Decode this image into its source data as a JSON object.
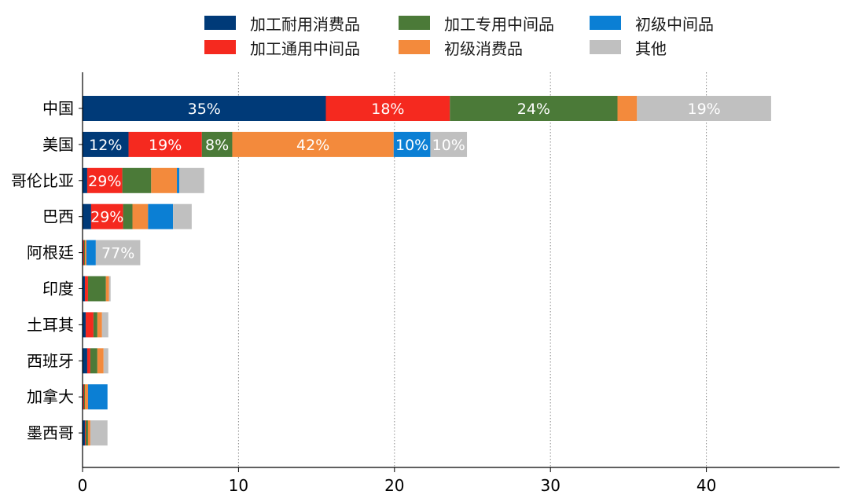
{
  "chart_data": {
    "type": "bar",
    "orientation": "horizontal",
    "stacked": true,
    "title": "",
    "xlabel": "",
    "ylabel": "",
    "xlim": [
      0,
      48
    ],
    "xticks": [
      0,
      10,
      20,
      30,
      40
    ],
    "grid": "vertical dotted",
    "legend_position": "top",
    "categories": [
      "中国",
      "美国",
      "哥伦比亚",
      "巴西",
      "阿根廷",
      "印度",
      "土耳其",
      "西班牙",
      "加拿大",
      "墨西哥"
    ],
    "series": [
      {
        "name": "加工耐用消费品",
        "color": "#003a78",
        "values": [
          15.6,
          2.95,
          0.3,
          0.55,
          0.05,
          0.15,
          0.2,
          0.3,
          0.05,
          0.15
        ]
      },
      {
        "name": "加工通用中间品",
        "color": "#f5291f",
        "values": [
          7.95,
          4.7,
          2.25,
          2.05,
          0.05,
          0.2,
          0.5,
          0.2,
          0.05,
          0.05
        ]
      },
      {
        "name": "加工专用中间品",
        "color": "#4b7a38",
        "values": [
          10.75,
          1.95,
          1.85,
          0.6,
          0.05,
          1.15,
          0.25,
          0.45,
          0.05,
          0.15
        ]
      },
      {
        "name": "初级消费品",
        "color": "#f38a3c",
        "values": [
          1.25,
          10.35,
          1.65,
          1.0,
          0.1,
          0.2,
          0.3,
          0.4,
          0.2,
          0.15
        ]
      },
      {
        "name": "初级中间品",
        "color": "#0b7fd4",
        "values": [
          0.0,
          2.35,
          0.15,
          1.6,
          0.6,
          0.0,
          0.0,
          0.0,
          1.25,
          0.0
        ]
      },
      {
        "name": "其他",
        "color": "#c0c0c0",
        "values": [
          8.6,
          2.35,
          1.6,
          1.2,
          2.85,
          0.1,
          0.4,
          0.3,
          0.0,
          1.1
        ]
      }
    ],
    "data_labels": [
      {
        "category": "中国",
        "series": "加工耐用消费品",
        "text": "35%"
      },
      {
        "category": "中国",
        "series": "加工通用中间品",
        "text": "18%"
      },
      {
        "category": "中国",
        "series": "加工专用中间品",
        "text": "24%"
      },
      {
        "category": "中国",
        "series": "其他",
        "text": "19%"
      },
      {
        "category": "美国",
        "series": "加工耐用消费品",
        "text": "12%"
      },
      {
        "category": "美国",
        "series": "加工通用中间品",
        "text": "19%"
      },
      {
        "category": "美国",
        "series": "加工专用中间品",
        "text": "8%"
      },
      {
        "category": "美国",
        "series": "初级消费品",
        "text": "42%"
      },
      {
        "category": "美国",
        "series": "初级中间品",
        "text": "10%"
      },
      {
        "category": "美国",
        "series": "其他",
        "text": "10%"
      },
      {
        "category": "哥伦比亚",
        "series": "加工通用中间品",
        "text": "29%"
      },
      {
        "category": "巴西",
        "series": "加工通用中间品",
        "text": "29%"
      },
      {
        "category": "阿根廷",
        "series": "其他",
        "text": "77%"
      }
    ]
  }
}
